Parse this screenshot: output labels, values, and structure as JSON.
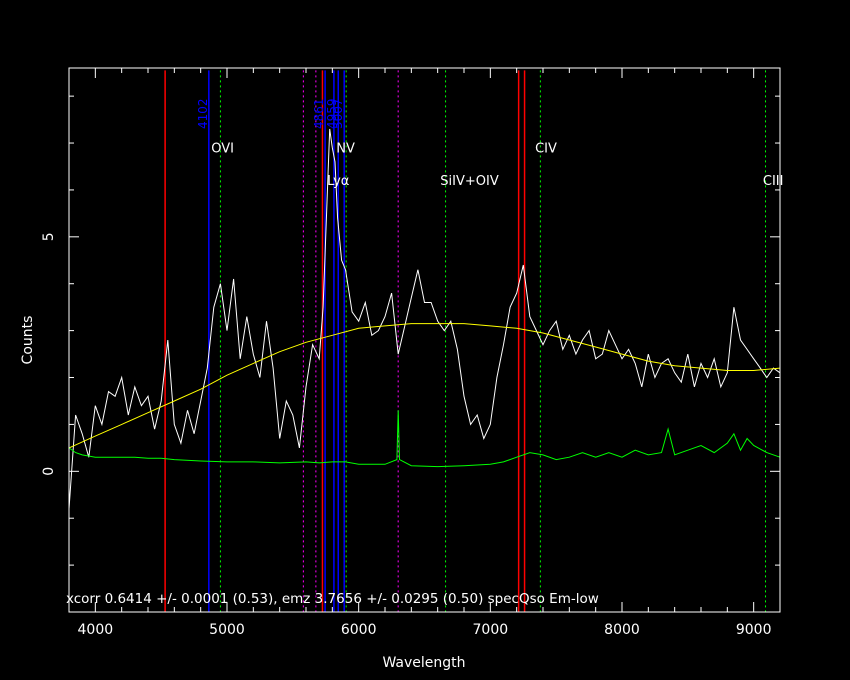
{
  "chart_data": {
    "type": "line",
    "title": "",
    "xlabel": "Wavelength",
    "ylabel": "Counts",
    "xlim": [
      3800,
      9200
    ],
    "ylim": [
      -3.0,
      8.6
    ],
    "x_ticks": [
      4000,
      5000,
      6000,
      7000,
      8000,
      9000
    ],
    "y_ticks": [
      0,
      5
    ],
    "grid": false,
    "colors": {
      "background": "#000000",
      "axes": "#ffffff",
      "spectrum": "#ffffff",
      "continuum_fit": "#ffff00",
      "noise": "#00ff00",
      "sky_line": "#ff0000",
      "template_line": "#0000ff",
      "emission_marker": "#00ff00",
      "absorption_marker": "#ff00ff"
    },
    "annotation": "xcorr  0.6414 +/- 0.0001 (0.53), emz  3.7656 +/- 0.0295 (0.50) specQso Em-low",
    "series": [
      {
        "role": "spectrum",
        "x": [
          3800,
          3850,
          3900,
          3950,
          4000,
          4050,
          4100,
          4150,
          4200,
          4250,
          4300,
          4350,
          4400,
          4450,
          4500,
          4550,
          4600,
          4650,
          4700,
          4750,
          4800,
          4850,
          4900,
          4950,
          5000,
          5050,
          5100,
          5150,
          5200,
          5250,
          5300,
          5350,
          5400,
          5450,
          5500,
          5550,
          5600,
          5650,
          5700,
          5730,
          5760,
          5780,
          5800,
          5820,
          5840,
          5870,
          5900,
          5950,
          6000,
          6050,
          6100,
          6150,
          6200,
          6250,
          6300,
          6350,
          6400,
          6450,
          6500,
          6550,
          6600,
          6650,
          6700,
          6750,
          6800,
          6850,
          6900,
          6950,
          7000,
          7050,
          7100,
          7150,
          7200,
          7250,
          7300,
          7350,
          7400,
          7450,
          7500,
          7550,
          7600,
          7650,
          7700,
          7750,
          7800,
          7850,
          7900,
          7950,
          8000,
          8050,
          8100,
          8150,
          8200,
          8250,
          8300,
          8350,
          8400,
          8450,
          8500,
          8550,
          8600,
          8650,
          8700,
          8750,
          8800,
          8850,
          8900,
          8950,
          9000,
          9050,
          9100,
          9150,
          9200
        ],
        "values": [
          -0.8,
          1.2,
          0.8,
          0.3,
          1.4,
          1.0,
          1.7,
          1.6,
          2.0,
          1.2,
          1.8,
          1.4,
          1.6,
          0.9,
          1.5,
          2.8,
          1.0,
          0.6,
          1.3,
          0.8,
          1.5,
          2.2,
          3.5,
          4.0,
          3.0,
          4.1,
          2.4,
          3.3,
          2.5,
          2.0,
          3.2,
          2.2,
          0.7,
          1.5,
          1.2,
          0.5,
          1.8,
          2.7,
          2.4,
          3.5,
          5.8,
          7.3,
          6.9,
          6.6,
          5.4,
          4.5,
          4.3,
          3.4,
          3.2,
          3.6,
          2.9,
          3.0,
          3.3,
          3.8,
          2.5,
          3.1,
          3.7,
          4.3,
          3.6,
          3.6,
          3.2,
          3.0,
          3.2,
          2.6,
          1.6,
          1.0,
          1.2,
          0.7,
          1.0,
          2.0,
          2.7,
          3.5,
          3.8,
          4.4,
          3.3,
          3.0,
          2.7,
          3.0,
          3.2,
          2.6,
          2.9,
          2.5,
          2.8,
          3.0,
          2.4,
          2.5,
          3.0,
          2.7,
          2.4,
          2.6,
          2.3,
          1.8,
          2.5,
          2.0,
          2.3,
          2.4,
          2.1,
          1.9,
          2.5,
          1.8,
          2.3,
          2.0,
          2.4,
          1.8,
          2.1,
          3.5,
          2.8,
          2.6,
          2.4,
          2.2,
          2.0,
          2.2,
          2.1
        ]
      },
      {
        "role": "continuum_fit",
        "x": [
          3800,
          4000,
          4200,
          4400,
          4600,
          4800,
          5000,
          5200,
          5400,
          5600,
          5800,
          6000,
          6200,
          6400,
          6600,
          6800,
          7000,
          7200,
          7400,
          7600,
          7800,
          8000,
          8200,
          8400,
          8600,
          8800,
          9000,
          9200
        ],
        "values": [
          0.5,
          0.75,
          1.0,
          1.25,
          1.5,
          1.75,
          2.05,
          2.3,
          2.55,
          2.75,
          2.9,
          3.05,
          3.1,
          3.15,
          3.15,
          3.15,
          3.1,
          3.05,
          2.95,
          2.8,
          2.65,
          2.5,
          2.35,
          2.25,
          2.2,
          2.15,
          2.15,
          2.2
        ]
      },
      {
        "role": "noise",
        "x": [
          3800,
          3850,
          3900,
          4000,
          4100,
          4200,
          4300,
          4400,
          4500,
          4600,
          4800,
          5000,
          5200,
          5400,
          5600,
          5700,
          5800,
          5900,
          6000,
          6100,
          6200,
          6290,
          6300,
          6310,
          6400,
          6600,
          6800,
          7000,
          7100,
          7200,
          7300,
          7400,
          7500,
          7600,
          7700,
          7800,
          7900,
          8000,
          8100,
          8200,
          8300,
          8350,
          8400,
          8500,
          8600,
          8700,
          8800,
          8850,
          8900,
          8950,
          9000,
          9100,
          9200
        ],
        "values": [
          0.5,
          0.4,
          0.35,
          0.3,
          0.3,
          0.3,
          0.3,
          0.28,
          0.28,
          0.25,
          0.22,
          0.2,
          0.2,
          0.18,
          0.2,
          0.18,
          0.2,
          0.2,
          0.15,
          0.15,
          0.15,
          0.25,
          1.3,
          0.25,
          0.12,
          0.1,
          0.12,
          0.15,
          0.2,
          0.3,
          0.4,
          0.35,
          0.25,
          0.3,
          0.4,
          0.3,
          0.4,
          0.3,
          0.45,
          0.35,
          0.4,
          0.9,
          0.35,
          0.45,
          0.55,
          0.4,
          0.6,
          0.8,
          0.45,
          0.7,
          0.55,
          0.4,
          0.3
        ]
      }
    ],
    "sky_lines": [
      4530,
      5725,
      7215,
      7260
    ],
    "template_lines": [
      {
        "x": 4862,
        "label": "4102"
      },
      {
        "x": 5745,
        "label": "4861"
      },
      {
        "x": 5812,
        "label": ""
      },
      {
        "x": 5845,
        "label": "4959"
      },
      {
        "x": 5890,
        "label": "5007"
      }
    ],
    "emission_markers": [
      4950,
      5905,
      6660,
      7380,
      9090
    ],
    "absorption_markers": [
      5580,
      5675,
      6300
    ],
    "line_ids": [
      {
        "x": 4880,
        "y": 6.8,
        "label": "OVI"
      },
      {
        "x": 5760,
        "y": 6.1,
        "label": "Lyα"
      },
      {
        "x": 5830,
        "y": 6.8,
        "label": "NV"
      },
      {
        "x": 6620,
        "y": 6.1,
        "label": "SiIV+OIV"
      },
      {
        "x": 7340,
        "y": 6.8,
        "label": "CIV"
      },
      {
        "x": 9070,
        "y": 6.1,
        "label": "CIII"
      }
    ]
  }
}
